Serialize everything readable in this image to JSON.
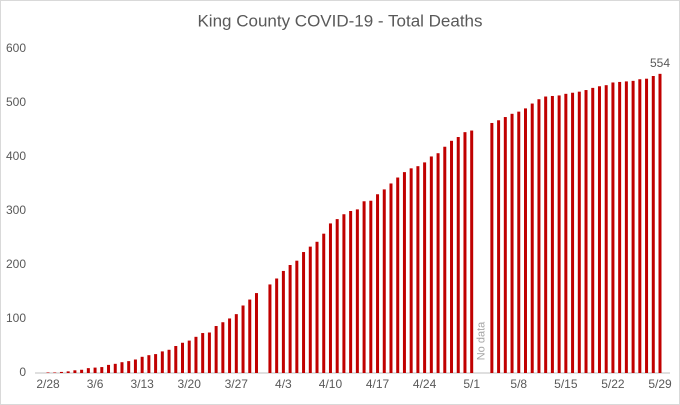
{
  "chart_data": {
    "type": "bar",
    "title": "King County COVID-19 - Total Deaths",
    "categories": [
      "2/28",
      null,
      null,
      null,
      null,
      null,
      null,
      "3/6",
      null,
      null,
      null,
      null,
      null,
      null,
      "3/13",
      null,
      null,
      null,
      null,
      null,
      null,
      "3/20",
      null,
      null,
      null,
      null,
      null,
      null,
      "3/27",
      null,
      null,
      null,
      null,
      null,
      null,
      "4/3",
      null,
      null,
      null,
      null,
      null,
      null,
      "4/10",
      null,
      null,
      null,
      null,
      null,
      null,
      "4/17",
      null,
      null,
      null,
      null,
      null,
      null,
      "4/24",
      null,
      null,
      null,
      null,
      null,
      null,
      "5/1",
      null,
      null,
      null,
      null,
      null,
      null,
      "5/8",
      null,
      null,
      null,
      null,
      null,
      null,
      "5/15",
      null,
      null,
      null,
      null,
      null,
      null,
      "5/22",
      null,
      null,
      null,
      null,
      null,
      null,
      "5/29"
    ],
    "values": [
      1,
      1,
      2,
      3,
      5,
      6,
      9,
      10,
      11,
      15,
      17,
      20,
      22,
      25,
      30,
      33,
      35,
      40,
      43,
      50,
      56,
      60,
      67,
      74,
      75,
      87,
      94,
      101,
      109,
      125,
      136,
      148,
      null,
      164,
      175,
      189,
      200,
      208,
      224,
      234,
      243,
      258,
      277,
      285,
      294,
      300,
      303,
      318,
      319,
      331,
      340,
      351,
      362,
      372,
      379,
      383,
      390,
      401,
      407,
      419,
      430,
      437,
      446,
      449,
      null,
      null,
      463,
      468,
      474,
      480,
      484,
      490,
      499,
      507,
      512,
      513,
      514,
      517,
      519,
      521,
      524,
      528,
      531,
      533,
      538,
      539,
      540,
      541,
      544,
      545,
      550,
      554
    ],
    "annotation": "No data",
    "color": "#c00000",
    "ylim": [
      0,
      600
    ],
    "yticks": [
      0,
      100,
      200,
      300,
      400,
      500,
      600
    ],
    "grid": false
  }
}
